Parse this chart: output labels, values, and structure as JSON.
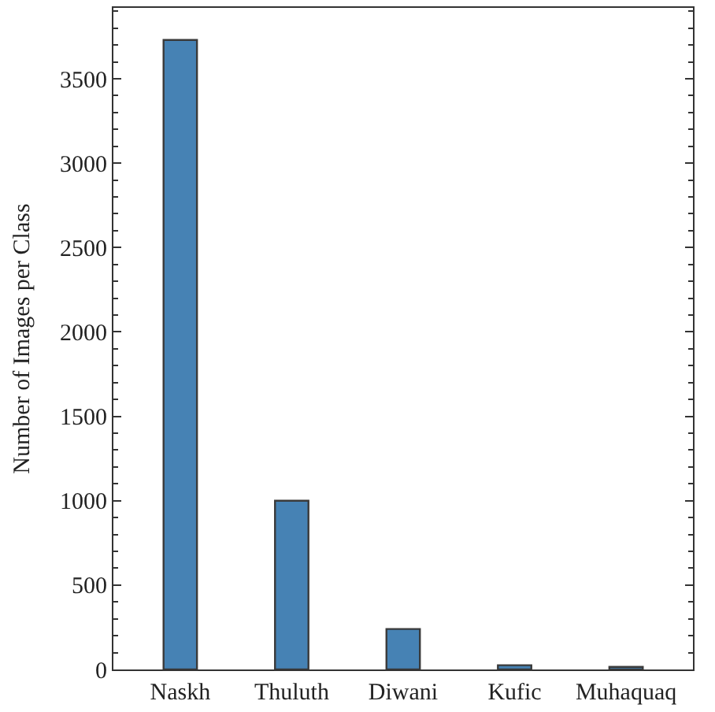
{
  "chart_data": {
    "type": "bar",
    "ylabel": "Number of Images per Class",
    "categories": [
      "Naskh",
      "Thuluth",
      "Diwani",
      "Kufic",
      "Muhaquaq"
    ],
    "values": [
      3730,
      1000,
      240,
      25,
      15
    ],
    "color": "#4682b4",
    "ylim": [
      0,
      3920
    ],
    "yticks": [
      0,
      500,
      1000,
      1500,
      2000,
      2500,
      3000,
      3500
    ]
  }
}
